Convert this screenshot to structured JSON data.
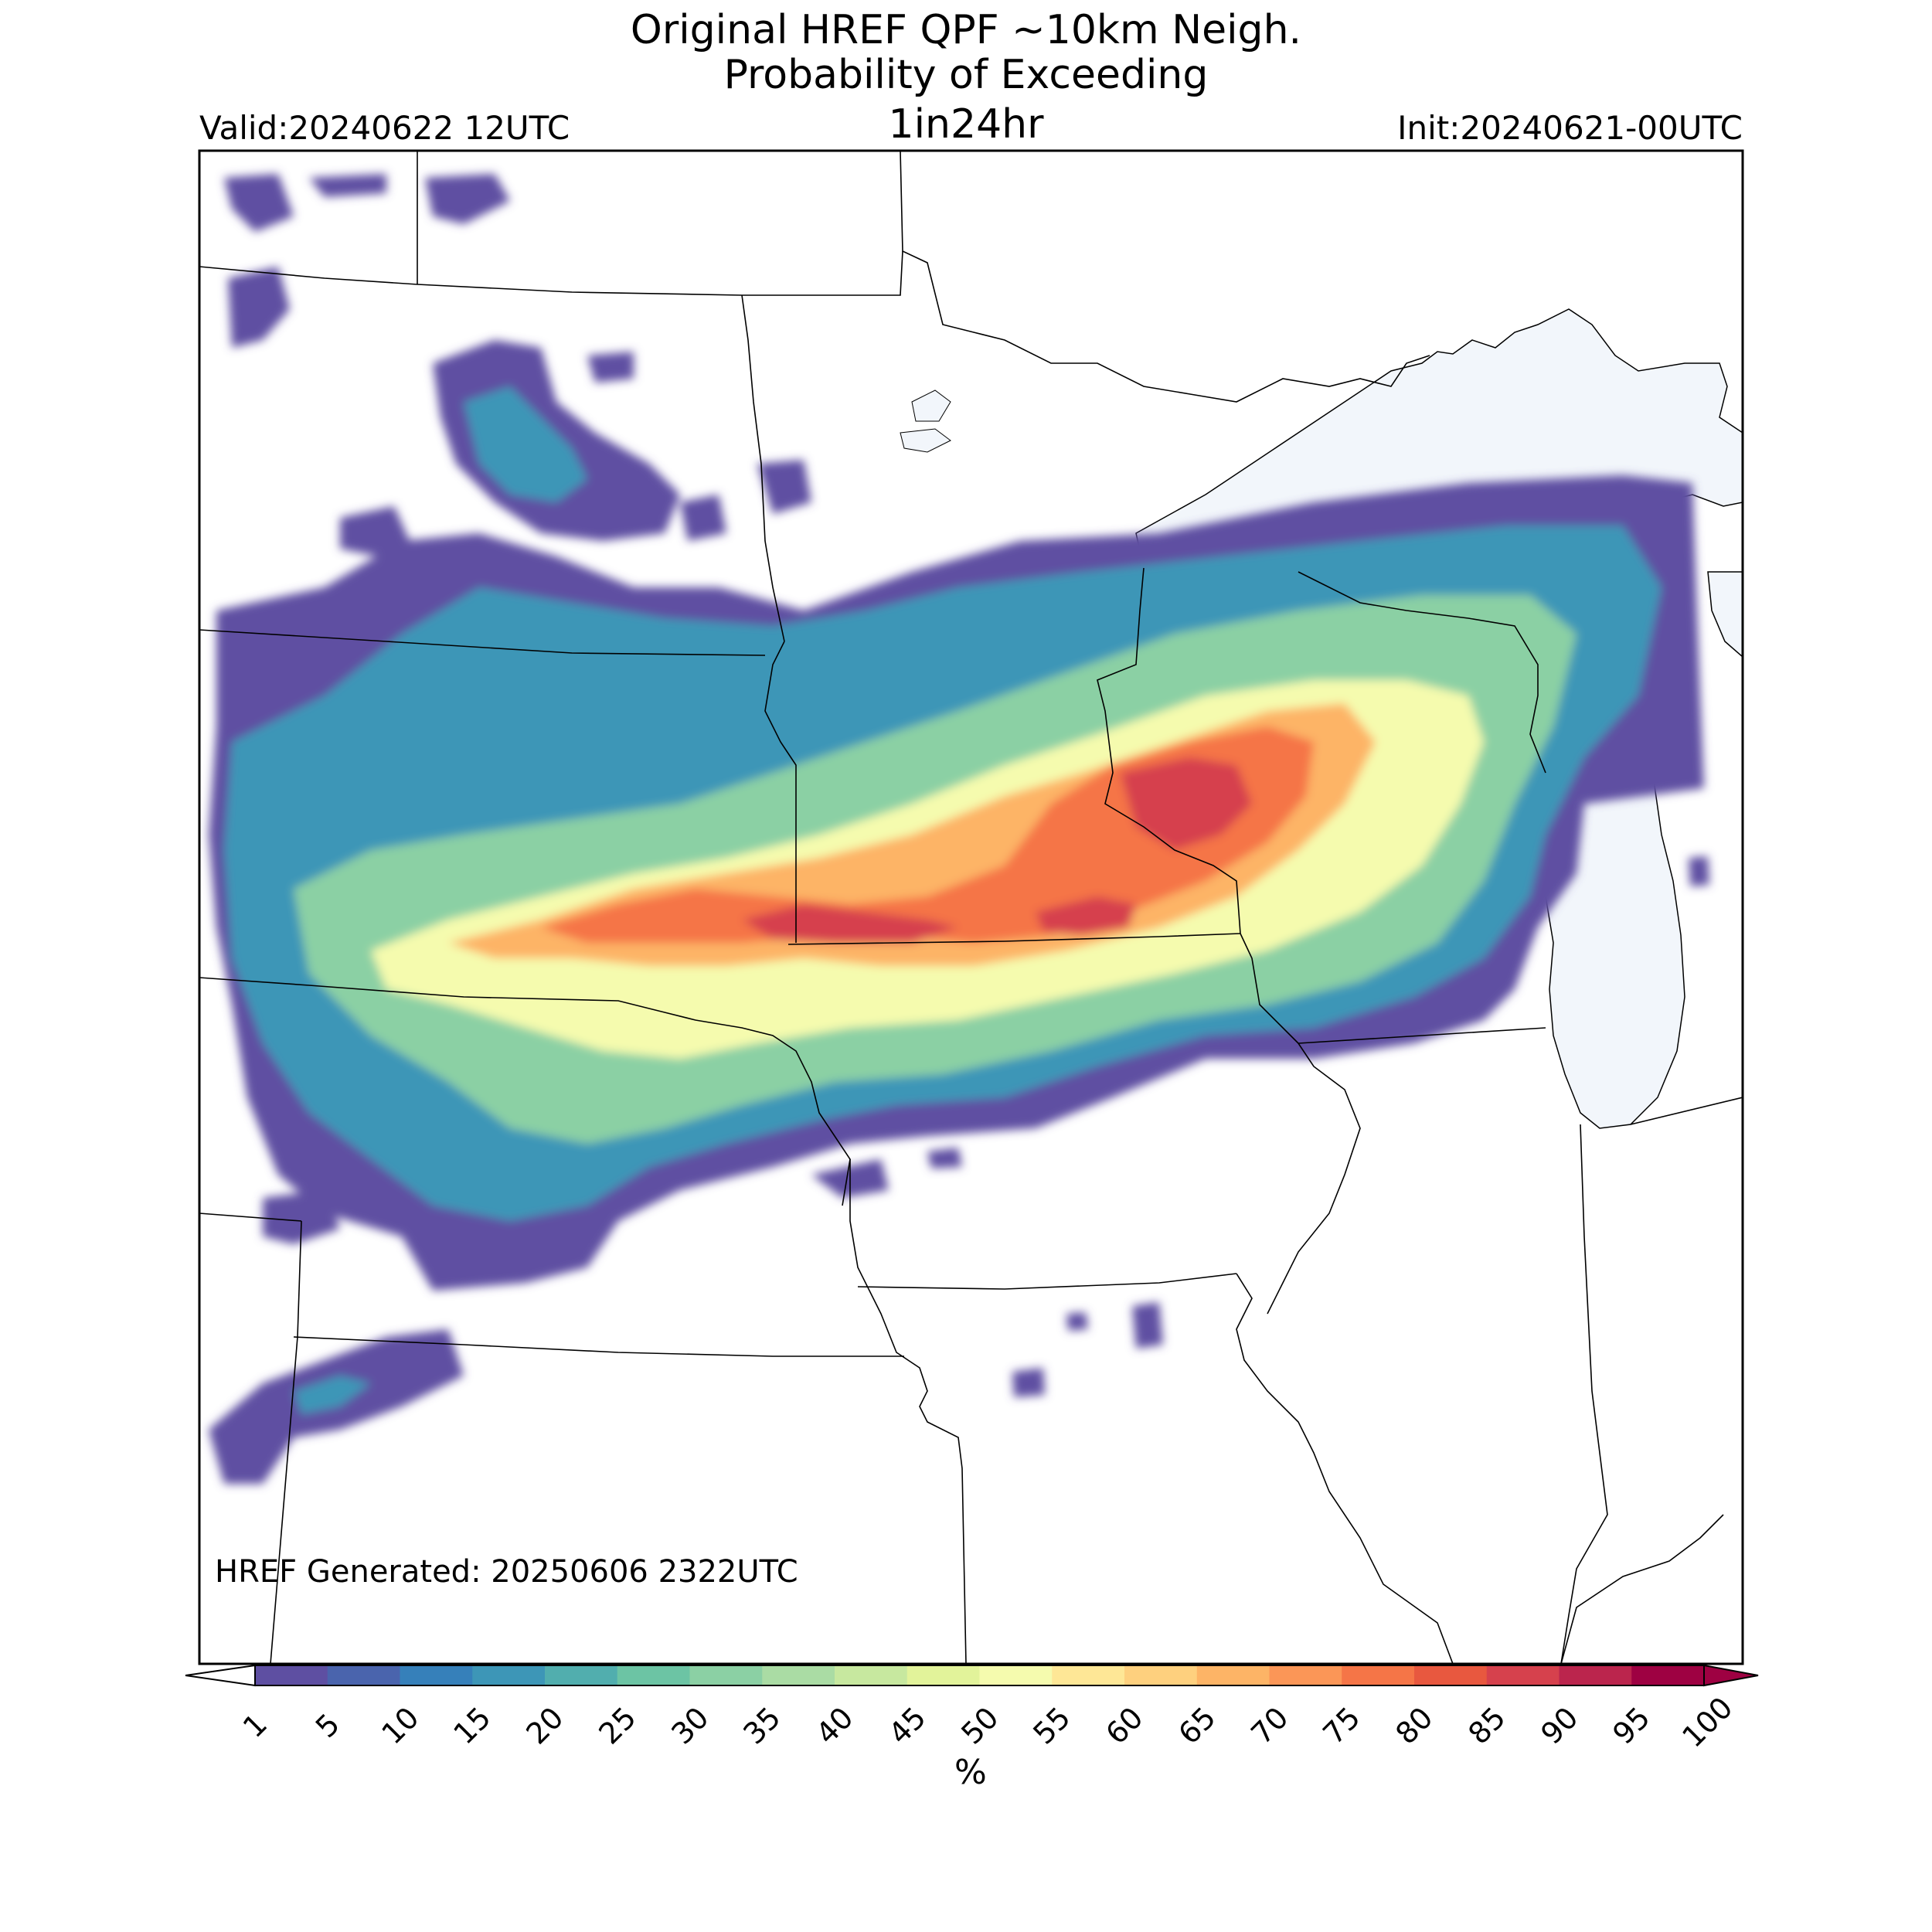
{
  "header": {
    "title_line1": "Original HREF QPF ~10km Neigh.",
    "title_line2": "Probability of Exceeding",
    "threshold": "1in24hr",
    "valid": "Valid:20240622 12UTC",
    "init": "Init:20240621-00UTC"
  },
  "footer": {
    "generated": "HREF Generated: 20250606 2322UTC"
  },
  "colorbar": {
    "unit_label": "%",
    "levels": [
      "1",
      "5",
      "10",
      "15",
      "20",
      "25",
      "30",
      "35",
      "40",
      "45",
      "50",
      "55",
      "60",
      "65",
      "70",
      "75",
      "80",
      "85",
      "90",
      "95",
      "100"
    ],
    "colors": [
      "#5e4fa2",
      "#4a64ad",
      "#3680ba",
      "#3d96b7",
      "#51aeae",
      "#6cc4a4",
      "#8bd0a4",
      "#aadca4",
      "#c7e89f",
      "#e2f39a",
      "#f5fbae",
      "#fee796",
      "#fed07e",
      "#fdb466",
      "#fb9657",
      "#f57547",
      "#e8583f",
      "#d6414d",
      "#bb254d",
      "#9e0142"
    ],
    "under_color": "#ffffff",
    "over_color": "#9e0142"
  },
  "map_colors": {
    "lake_fill": "#f2f6fb",
    "border": "#000000"
  }
}
